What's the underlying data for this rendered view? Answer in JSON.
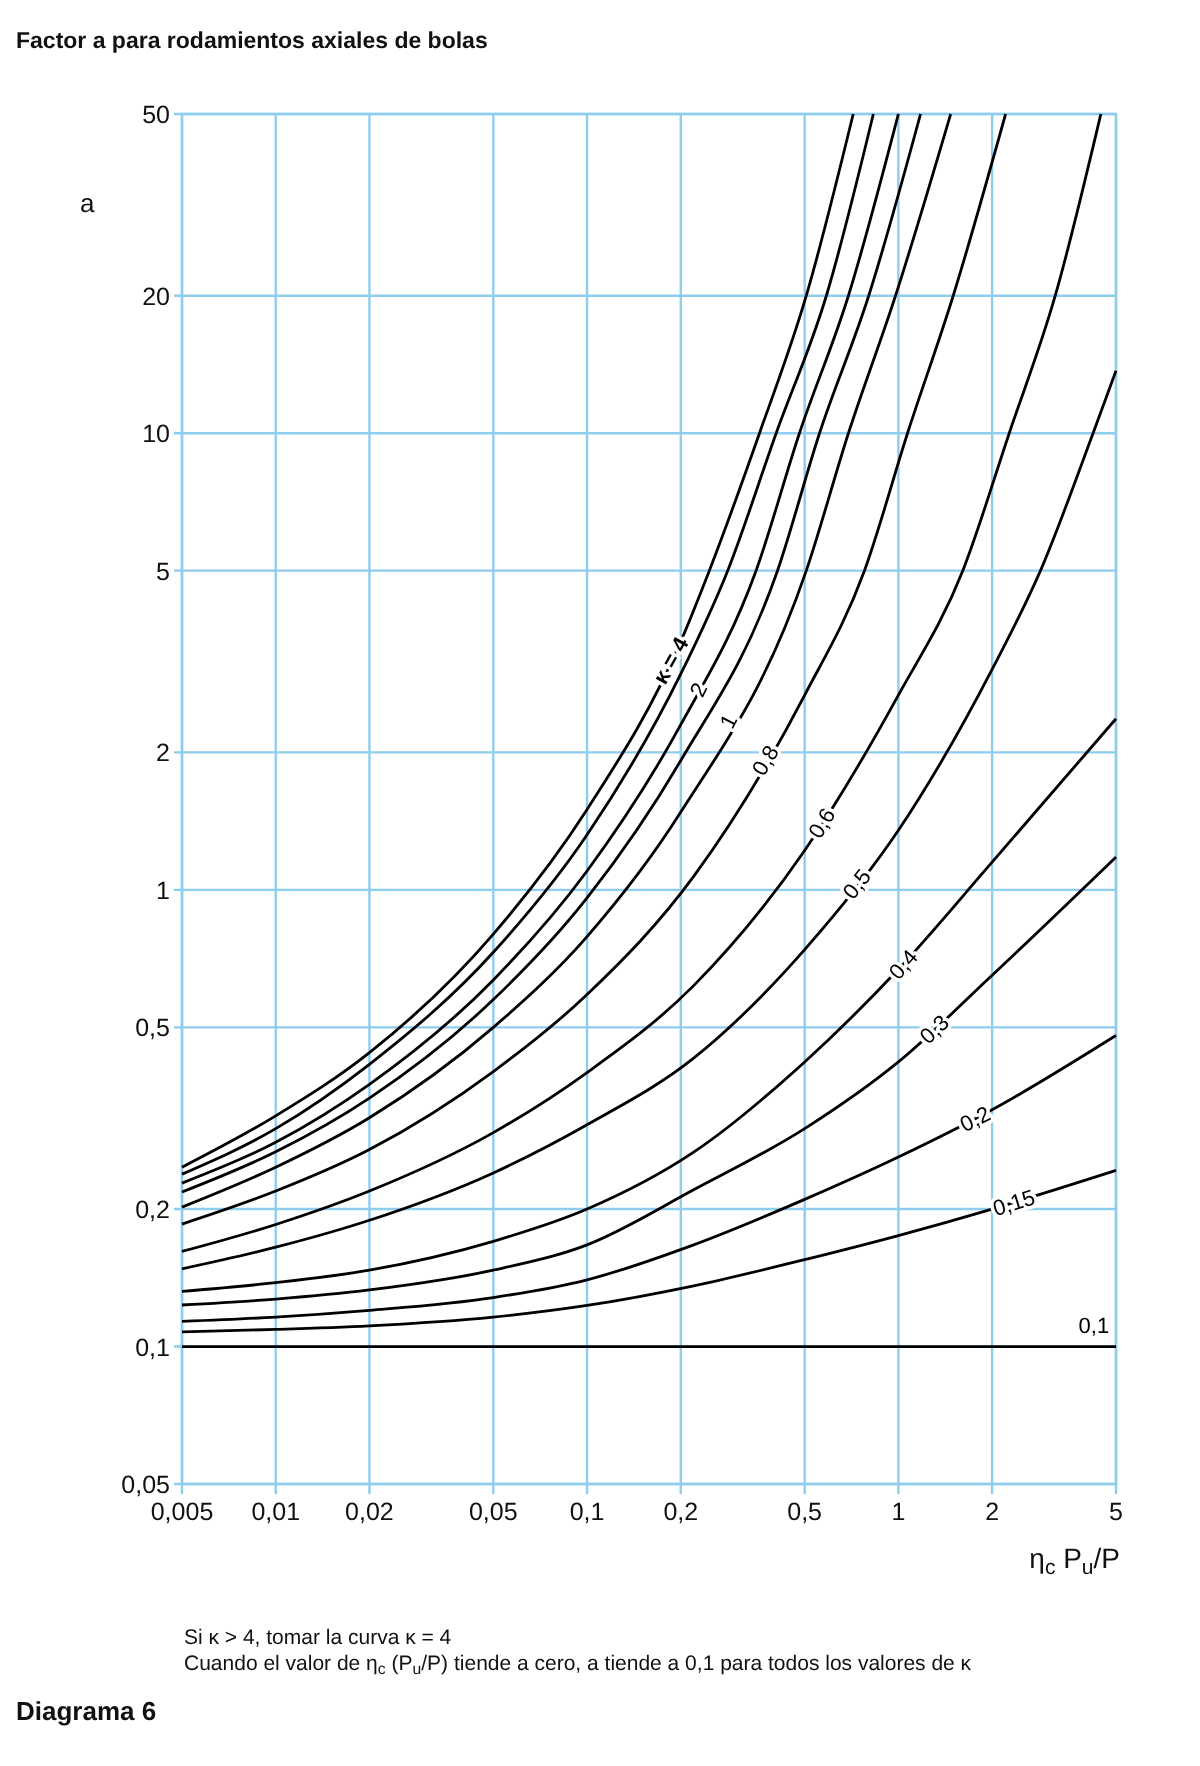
{
  "chart_data": {
    "type": "line",
    "title": "Factor a para rodamientos axiales de bolas",
    "ylabel": "a",
    "xlabel": "η$_{c}$ P$_{u}$/P",
    "annotations": [
      "Si κ > 4, tomar la curva κ = 4",
      "Cuando el valor de η$_{c}$ (P$_{u}$/P) tiende a cero, a tiende a 0,1 para todos los valores de κ",
      "Diagrama 6"
    ],
    "log": "xy",
    "grid": true,
    "legend": false,
    "marker": "none",
    "line_style": "solid",
    "xlim": [
      0.005,
      5
    ],
    "ylim": [
      0.05,
      50
    ],
    "xticks": [
      {
        "value": 0.005,
        "label": "0,005"
      },
      {
        "value": 0.01,
        "label": "0,01"
      },
      {
        "value": 0.02,
        "label": "0,02"
      },
      {
        "value": 0.05,
        "label": "0,05"
      },
      {
        "value": 0.1,
        "label": "0,1"
      },
      {
        "value": 0.2,
        "label": "0,2"
      },
      {
        "value": 0.5,
        "label": "0,5"
      },
      1,
      2,
      5
    ],
    "yticks": [
      {
        "value": 0.05,
        "label": "0,05"
      },
      {
        "value": 0.1,
        "label": "0,1"
      },
      {
        "value": 0.2,
        "label": "0,2"
      },
      {
        "value": 0.5,
        "label": "0,5"
      },
      1,
      2,
      5,
      10,
      20,
      50
    ],
    "series": [
      {
        "name": "κ = 4",
        "color": "#000000",
        "x": [
          0.005,
          0.01,
          0.02,
          0.05,
          0.1,
          0.2,
          0.247,
          0.358,
          0.506,
          0.716
        ],
        "values": [
          0.247,
          0.32,
          0.44,
          0.8,
          1.5,
          3.5,
          5,
          10,
          20,
          50
        ]
      },
      {
        "color": "#000000",
        "x": [
          0.005,
          0.01,
          0.02,
          0.05,
          0.1,
          0.2,
          0.283,
          0.405,
          0.587,
          0.831
        ],
        "values": [
          0.2385,
          0.3,
          0.415,
          0.73,
          1.32,
          2.97,
          5,
          10,
          20,
          50
        ]
      },
      {
        "name": "2",
        "color": "#000000",
        "x": [
          0.005,
          0.01,
          0.02,
          0.05,
          0.1,
          0.2,
          0.349,
          0.481,
          0.691,
          1.0
        ],
        "values": [
          0.228,
          0.28,
          0.375,
          0.635,
          1.1,
          2.3,
          5,
          10,
          20,
          50
        ]
      },
      {
        "color": "#000000",
        "x": [
          0.005,
          0.01,
          0.02,
          0.05,
          0.1,
          0.2,
          0.409,
          0.558,
          0.803,
          1.178
        ],
        "values": [
          0.218,
          0.267,
          0.35,
          0.575,
          0.96,
          1.92,
          5,
          10,
          20,
          50
        ]
      },
      {
        "name": "1",
        "color": "#000000",
        "x": [
          0.005,
          0.01,
          0.02,
          0.05,
          0.1,
          0.2,
          0.506,
          0.691,
          0.979,
          1.472
        ],
        "values": [
          0.202,
          0.247,
          0.317,
          0.5,
          0.79,
          1.48,
          5,
          10,
          20,
          50
        ]
      },
      {
        "name": "0,8",
        "color": "#000000",
        "x": [
          0.005,
          0.01,
          0.02,
          0.05,
          0.1,
          0.22,
          0.5,
          0.778,
          1.07,
          1.5,
          2.21
        ],
        "values": [
          0.1854,
          0.219,
          0.27,
          0.4,
          0.59,
          1.07,
          2.67,
          5,
          10,
          20,
          50
        ]
      },
      {
        "name": "0,6",
        "color": "#000000",
        "x": [
          0.005,
          0.01,
          0.02,
          0.05,
          0.1,
          0.22,
          0.5,
          1,
          1.61,
          2.27,
          3.19,
          4.47
        ],
        "values": [
          0.1615,
          0.185,
          0.219,
          0.294,
          0.398,
          0.617,
          1.22,
          2.67,
          5,
          10,
          20,
          50
        ]
      },
      {
        "name": "0,5",
        "color": "#000000",
        "x": [
          0.005,
          0.01,
          0.02,
          0.05,
          0.1,
          0.22,
          0.5,
          1,
          2,
          2.86,
          4.22,
          5
        ],
        "values": [
          0.148,
          0.165,
          0.189,
          0.24,
          0.306,
          0.428,
          0.74,
          1.35,
          3.04,
          5,
          10,
          13.7
        ]
      },
      {
        "name": "0,4",
        "color": "#000000",
        "x": [
          0.005,
          0.01,
          0.02,
          0.05,
          0.1,
          0.22,
          0.5,
          1,
          2,
          5
        ],
        "values": [
          0.132,
          0.138,
          0.147,
          0.17,
          0.2,
          0.2665,
          0.42,
          0.67,
          1.15,
          2.37
        ]
      },
      {
        "name": "0,3",
        "color": "#000000",
        "x": [
          0.005,
          0.01,
          0.02,
          0.05,
          0.1,
          0.22,
          0.5,
          1,
          2,
          5
        ],
        "values": [
          0.1233,
          0.127,
          0.133,
          0.147,
          0.167,
          0.2204,
          0.3,
          0.42,
          0.65,
          1.18
        ]
      },
      {
        "name": "0,2",
        "color": "#000000",
        "x": [
          0.005,
          0.01,
          0.02,
          0.05,
          0.1,
          0.22,
          0.5,
          1,
          2,
          5
        ],
        "values": [
          0.1135,
          0.116,
          0.12,
          0.128,
          0.14,
          0.167,
          0.21,
          0.26,
          0.33,
          0.48
        ]
      },
      {
        "name": "0,15",
        "color": "#000000",
        "x": [
          0.005,
          0.01,
          0.02,
          0.05,
          0.1,
          0.22,
          0.5,
          1,
          2,
          5
        ],
        "values": [
          0.1077,
          0.109,
          0.111,
          0.116,
          0.123,
          0.1358,
          0.155,
          0.175,
          0.2,
          0.243
        ]
      },
      {
        "name": "0,1",
        "color": "#000000",
        "x": [
          0.005,
          5
        ],
        "values": [
          0.1,
          0.1
        ]
      }
    ]
  }
}
